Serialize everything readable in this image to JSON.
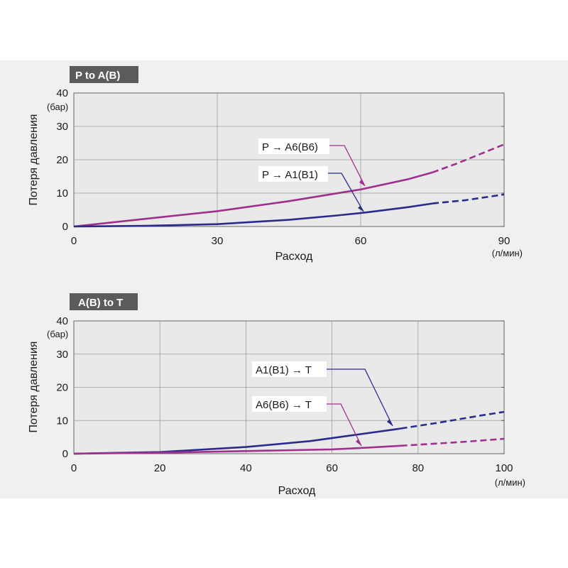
{
  "colors": {
    "series_dark": "#2a2c8c",
    "series_magenta": "#a0308e",
    "badge_bg": "#5b5b5b",
    "plot_bg": "#e9e9e9",
    "grid": "#9c9c9c"
  },
  "chart_data": [
    {
      "type": "line",
      "title": "P to A(B)",
      "xlabel": "Расход",
      "x_unit": "(л/мин)",
      "ylabel": "Потеря давления",
      "y_unit": "(бар)",
      "xlim": [
        0,
        90
      ],
      "ylim": [
        0,
        40
      ],
      "xticks": [
        0,
        30,
        60,
        90
      ],
      "yticks": [
        0,
        10,
        20,
        30,
        40
      ],
      "grid": true,
      "series": [
        {
          "name": "P → A6(B6)",
          "color": "#a0308e",
          "solid": [
            [
              0,
              0
            ],
            [
              15,
              2.3
            ],
            [
              30,
              4.6
            ],
            [
              45,
              7.6
            ],
            [
              60,
              11.1
            ],
            [
              70,
              14.2
            ],
            [
              75,
              16.2
            ]
          ],
          "dashed": [
            [
              75,
              16.2
            ],
            [
              80,
              18.8
            ],
            [
              90,
              24.6
            ]
          ]
        },
        {
          "name": "P → A1(B1)",
          "color": "#2a2c8c",
          "solid": [
            [
              0,
              0
            ],
            [
              15,
              0.2
            ],
            [
              30,
              0.7
            ],
            [
              45,
              2.0
            ],
            [
              55,
              3.3
            ],
            [
              61,
              4.2
            ],
            [
              70,
              5.8
            ],
            [
              75,
              6.9
            ]
          ],
          "dashed": [
            [
              75,
              6.9
            ],
            [
              82,
              7.9
            ],
            [
              90,
              9.6
            ]
          ]
        }
      ]
    },
    {
      "type": "line",
      "title": "A(B) to T",
      "xlabel": "Расход",
      "x_unit": "(л/мин)",
      "ylabel": "Потеря давления",
      "y_unit": "(бар)",
      "xlim": [
        0,
        100
      ],
      "ylim": [
        0,
        40
      ],
      "xticks": [
        0,
        20,
        40,
        60,
        80,
        100
      ],
      "yticks": [
        0,
        10,
        20,
        30,
        40
      ],
      "grid": true,
      "series": [
        {
          "name": "A1(B1) → T",
          "color": "#2a2c8c",
          "solid": [
            [
              0,
              0
            ],
            [
              20,
              0.5
            ],
            [
              40,
              2.0
            ],
            [
              55,
              3.8
            ],
            [
              65,
              5.6
            ],
            [
              75,
              7.4
            ],
            [
              76,
              7.6
            ]
          ],
          "dashed": [
            [
              76,
              7.6
            ],
            [
              85,
              9.4
            ],
            [
              95,
              11.6
            ],
            [
              100,
              12.6
            ]
          ]
        },
        {
          "name": "A6(B6) → T",
          "color": "#a0308e",
          "solid": [
            [
              0,
              0
            ],
            [
              20,
              0.3
            ],
            [
              40,
              0.8
            ],
            [
              60,
              1.3
            ],
            [
              68,
              1.8
            ],
            [
              76,
              2.4
            ]
          ],
          "dashed": [
            [
              76,
              2.4
            ],
            [
              90,
              3.5
            ],
            [
              100,
              4.5
            ]
          ]
        }
      ]
    }
  ]
}
